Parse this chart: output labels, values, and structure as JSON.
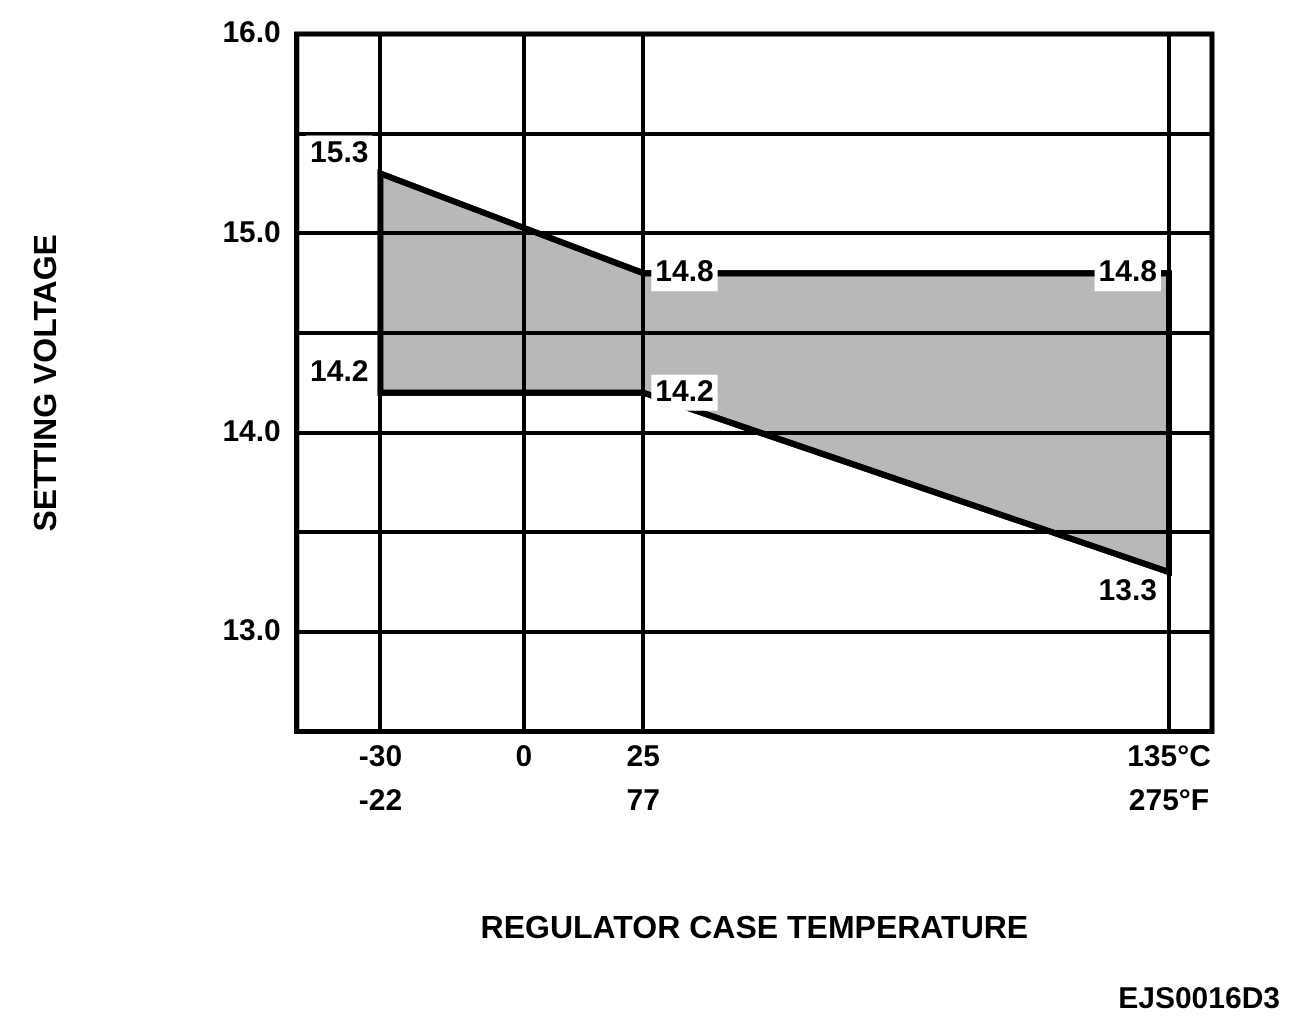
{
  "chart_data": {
    "type": "line",
    "xlabel": "REGULATOR CASE TEMPERATURE",
    "ylabel": "SETTING VOLTAGE",
    "annotations": [
      "EJS0016D3"
    ],
    "x": [
      -30,
      25,
      135
    ],
    "series": [
      {
        "type": "area",
        "color": "#000000",
        "values": [
          15.3,
          14.8,
          14.8
        ]
      },
      {
        "color": "#000000",
        "values": [
          14.2,
          14.2,
          13.3
        ]
      }
    ],
    "xlim": [
      -47.5,
      144
    ],
    "xticks": [
      -30,
      0,
      25,
      {
        "value": 135,
        "label": "135°C"
      }
    ],
    "x2lim": [
      -53.5,
      291.2
    ],
    "x2ticks": [
      -22,
      77,
      {
        "value": 275,
        "label": "275°F"
      }
    ],
    "ylim": [
      12.5,
      16
    ],
    "yticks": [
      {
        "value": 12.5,
        "label": null
      },
      {
        "value": 13,
        "label": "13.0"
      },
      {
        "value": 13.5,
        "label": null
      },
      {
        "value": 14,
        "label": "14.0"
      },
      {
        "value": 14.5,
        "label": null
      },
      {
        "value": 15,
        "label": "15.0"
      },
      {
        "value": 15.5,
        "label": null
      },
      {
        "value": 16,
        "label": "16.0"
      }
    ],
    "grid": true,
    "marker": "none",
    "line_style": "solid",
    "data_labels": true
  }
}
